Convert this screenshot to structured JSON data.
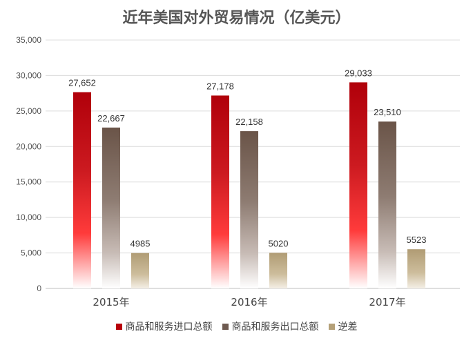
{
  "chart_data": {
    "type": "bar",
    "title": "近年美国对外贸易情况（亿美元）",
    "categories": [
      "2015年",
      "2016年",
      "2017年"
    ],
    "series": [
      {
        "name": "商品和服务进口总额",
        "values": [
          27652,
          27178,
          29033
        ],
        "labels": [
          "27,652",
          "27,178",
          "29,033"
        ],
        "color": "#b8000a"
      },
      {
        "name": "商品和服务出口总额",
        "values": [
          22667,
          22158,
          23510
        ],
        "labels": [
          "22,667",
          "22,158",
          "23,510"
        ],
        "color": "#6e5a50"
      },
      {
        "name": "逆差",
        "values": [
          4985,
          5020,
          5523
        ],
        "labels": [
          "4985",
          "5020",
          "5523"
        ],
        "color": "#b4a078"
      }
    ],
    "ylim": [
      0,
      35000
    ],
    "yticks": [
      0,
      5000,
      10000,
      15000,
      20000,
      25000,
      30000,
      35000
    ],
    "ytick_labels": [
      "0",
      "5,000",
      "10,000",
      "15,000",
      "20,000",
      "25,000",
      "30,000",
      "35,000"
    ],
    "grid": true,
    "legend_position": "bottom"
  }
}
